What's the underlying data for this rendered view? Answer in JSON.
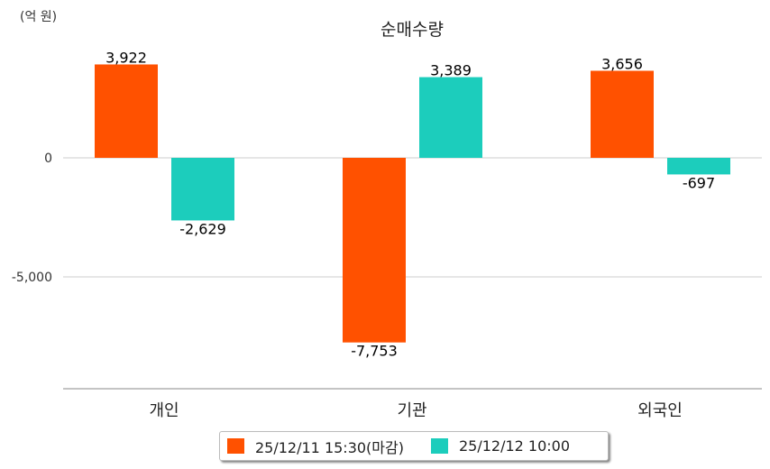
{
  "chart_data": {
    "type": "bar",
    "title": "순매수량",
    "ylabel": "(억 원)",
    "categories": [
      "개인",
      "기관",
      "외국인"
    ],
    "series": [
      {
        "name": "25/12/11 15:30(마감)",
        "color": "#ff5100",
        "values": [
          3922,
          -7753,
          3656
        ]
      },
      {
        "name": "25/12/12 10:00",
        "color": "#1ccdbc",
        "values": [
          -2629,
          3389,
          -697
        ]
      }
    ],
    "yticks": [
      0,
      -5000
    ],
    "ytick_labels": [
      "0",
      "-5,000"
    ],
    "ylim": [
      -9700,
      5000
    ],
    "legend_position": "bottom"
  }
}
